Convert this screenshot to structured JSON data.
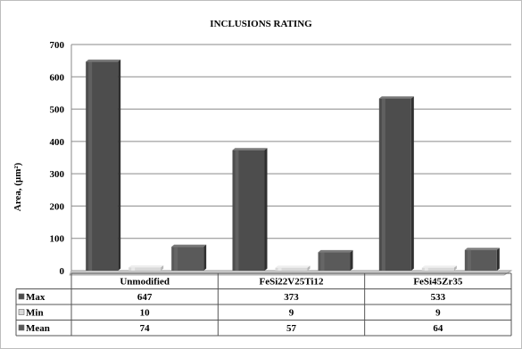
{
  "chart_data": {
    "type": "bar",
    "title": "INCLUSIONS RATING",
    "ylabel": "Area, (µm²)",
    "xlabel": "",
    "ylim": [
      0,
      700
    ],
    "yticks": [
      0,
      100,
      200,
      300,
      400,
      500,
      600,
      700
    ],
    "grid": true,
    "legend": "table-below",
    "categories": [
      "Unmodified",
      "FeSi22V25Ti12",
      "FeSi45Zr35"
    ],
    "series": [
      {
        "name": "Max",
        "values": [
          647,
          373,
          533
        ],
        "color": "#4d4d4d"
      },
      {
        "name": "Min",
        "values": [
          10,
          9,
          9
        ],
        "color": "#d9d9d9"
      },
      {
        "name": "Mean",
        "values": [
          74,
          57,
          64
        ],
        "color": "#5a5a5a"
      }
    ]
  }
}
